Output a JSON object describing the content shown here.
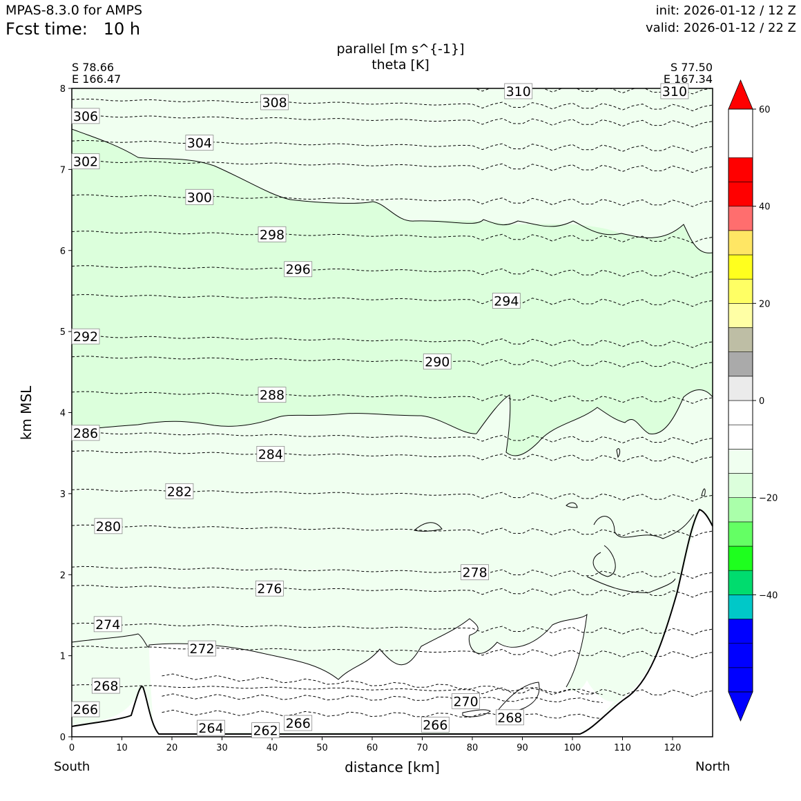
{
  "header": {
    "model": "MPAS-8.3.0 for AMPS",
    "forecast_time": "Fcst time:   10 h",
    "init": "init: 2026-01-12 / 12 Z",
    "valid": "valid: 2026-01-12 / 22 Z"
  },
  "chart_data": {
    "type": "contour",
    "title_line1": "parallel [m s^{-1}]",
    "title_line2": "theta [K]",
    "start_point": {
      "lat": "S 78.66",
      "lon": "E 166.47"
    },
    "end_point": {
      "lat": "S 77.50",
      "lon": "E 167.34"
    },
    "xlabel": "distance [km]",
    "ylabel": "km MSL",
    "x_left_label": "South",
    "x_right_label": "North",
    "xlim": [
      0,
      128
    ],
    "ylim": [
      0,
      8
    ],
    "x_ticks": [
      "0",
      "10",
      "20",
      "30",
      "40",
      "50",
      "60",
      "70",
      "80",
      "90",
      "100",
      "110",
      "120"
    ],
    "y_ticks": [
      "0",
      "1",
      "2",
      "3",
      "4",
      "5",
      "6",
      "7",
      "8"
    ],
    "theta_contour_labels": [
      {
        "text": "308",
        "x": 40.5,
        "y": 7.83
      },
      {
        "text": "310",
        "x": 89.2,
        "y": 8.0
      },
      {
        "text": "310",
        "x": 120.4,
        "y": 8.0
      },
      {
        "text": "306",
        "x": 2.3,
        "y": 7.66
      },
      {
        "text": "304",
        "x": 25.5,
        "y": 7.33
      },
      {
        "text": "302",
        "x": 2.3,
        "y": 7.1
      },
      {
        "text": "300",
        "x": 25.5,
        "y": 6.66
      },
      {
        "text": "298",
        "x": 40.0,
        "y": 6.2
      },
      {
        "text": "296",
        "x": 45.2,
        "y": 5.77
      },
      {
        "text": "294",
        "x": 86.8,
        "y": 5.38
      },
      {
        "text": "292",
        "x": 2.5,
        "y": 4.94
      },
      {
        "text": "290",
        "x": 73.0,
        "y": 4.63
      },
      {
        "text": "288",
        "x": 40.0,
        "y": 4.22
      },
      {
        "text": "286",
        "x": 2.5,
        "y": 3.75
      },
      {
        "text": "284",
        "x": 39.7,
        "y": 3.49
      },
      {
        "text": "282",
        "x": 21.5,
        "y": 3.03
      },
      {
        "text": "280",
        "x": 7.3,
        "y": 2.6
      },
      {
        "text": "278",
        "x": 80.5,
        "y": 2.03
      },
      {
        "text": "276",
        "x": 39.5,
        "y": 1.83
      },
      {
        "text": "274",
        "x": 7.2,
        "y": 1.39
      },
      {
        "text": "272",
        "x": 26.0,
        "y": 1.09
      },
      {
        "text": "270",
        "x": 78.7,
        "y": 0.44
      },
      {
        "text": "268",
        "x": 6.8,
        "y": 0.63
      },
      {
        "text": "268",
        "x": 87.5,
        "y": 0.24
      },
      {
        "text": "266",
        "x": 2.5,
        "y": 0.34
      },
      {
        "text": "266",
        "x": 45.2,
        "y": 0.17
      },
      {
        "text": "266",
        "x": 72.6,
        "y": 0.15
      },
      {
        "text": "264",
        "x": 27.8,
        "y": 0.11
      },
      {
        "text": "262",
        "x": 38.7,
        "y": 0.08
      }
    ],
    "colorbar": {
      "levels": [
        -60,
        -55,
        -50,
        -45,
        -40,
        -35,
        -30,
        -25,
        -20,
        -15,
        -10,
        -5,
        0,
        5,
        10,
        15,
        20,
        25,
        30,
        35,
        40,
        45,
        50,
        55,
        60
      ],
      "colors": [
        "#0000ff",
        "#0000ff",
        "#0000ff",
        "#00c8c8",
        "#00dc6e",
        "#1eff1e",
        "#64ff64",
        "#aaffaa",
        "#dcffdc",
        "#f0fff0",
        "#ffffff",
        "#ffffff",
        "#ebebeb",
        "#aaaaaa",
        "#bebea5",
        "#ffffa5",
        "#ffff64",
        "#ffff1e",
        "#ffe664",
        "#ff6e6e",
        "#ff0000",
        "#ff0000"
      ],
      "tick_labels": [
        "60",
        "40",
        "20",
        "0",
        "−20",
        "−40"
      ],
      "tick_values": [
        60,
        40,
        20,
        0,
        -20,
        -40
      ],
      "extend": "both"
    }
  }
}
